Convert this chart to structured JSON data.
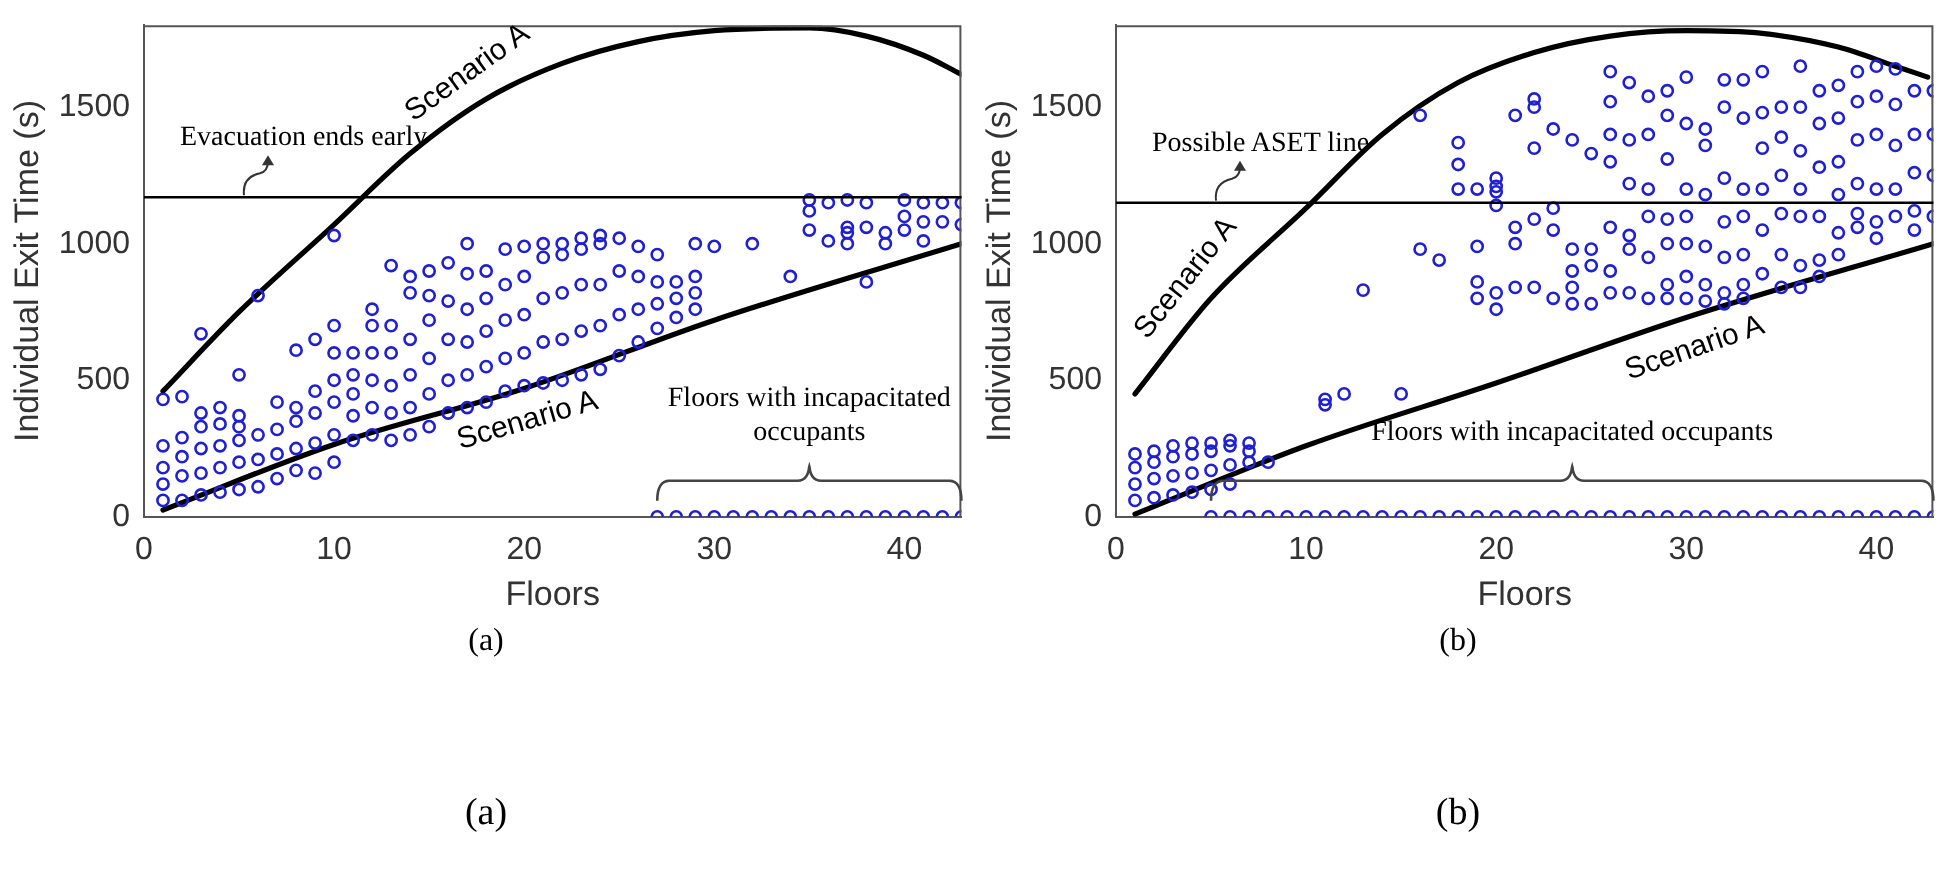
{
  "chart_data": [
    {
      "type": "scatter",
      "xlabel": "Floors",
      "ylabel": "Individual Exit Time (s)",
      "xlim": [
        0,
        43
      ],
      "xticks": [
        0,
        10,
        20,
        30,
        40
      ],
      "ylim": [
        0,
        1800
      ],
      "yticks": [
        0,
        500,
        1000,
        1500
      ],
      "marker": "circle",
      "ref_lines": [
        {
          "axis": "y",
          "value": 1170,
          "label": "Evacuation ends early",
          "color": "#000000"
        }
      ],
      "annotations": [
        "Floors with incapacitated occupants",
        "(a)",
        "(a)"
      ],
      "series": [
        {
          "type": "scatter",
          "color": "#1f1fd6",
          "x": [
            1,
            1,
            1,
            1,
            1,
            2,
            2,
            2,
            2,
            2,
            3,
            3,
            3,
            3,
            3,
            3,
            4,
            4,
            4,
            4,
            4,
            5,
            5,
            5,
            5,
            5,
            5,
            6,
            6,
            6,
            6,
            7,
            7,
            7,
            7,
            8,
            8,
            8,
            8,
            8,
            9,
            9,
            9,
            9,
            9,
            10,
            10,
            10,
            10,
            10,
            10,
            10,
            11,
            11,
            11,
            11,
            11,
            12,
            12,
            12,
            12,
            12,
            12,
            13,
            13,
            13,
            13,
            13,
            13,
            14,
            14,
            14,
            14,
            14,
            14,
            15,
            15,
            15,
            15,
            15,
            15,
            16,
            16,
            16,
            16,
            16,
            17,
            17,
            17,
            17,
            17,
            17,
            18,
            18,
            18,
            18,
            18,
            19,
            19,
            19,
            19,
            19,
            20,
            20,
            20,
            20,
            20,
            21,
            21,
            21,
            21,
            21,
            22,
            22,
            22,
            22,
            22,
            23,
            23,
            23,
            23,
            23,
            24,
            24,
            24,
            24,
            24,
            25,
            25,
            25,
            25,
            26,
            26,
            26,
            26,
            27,
            27,
            27,
            27,
            28,
            28,
            28,
            29,
            29,
            29,
            29,
            30,
            32,
            34,
            35,
            35,
            35,
            36,
            36,
            37,
            37,
            37,
            37,
            38,
            38,
            38,
            39,
            39,
            40,
            40,
            40,
            41,
            41,
            41,
            42,
            42,
            43,
            43,
            27,
            28,
            29,
            30,
            31,
            32,
            33,
            34,
            35,
            36,
            37,
            38,
            39,
            40,
            41,
            42,
            43
          ],
          "values": [
            60,
            120,
            180,
            260,
            430,
            60,
            150,
            220,
            290,
            440,
            80,
            160,
            250,
            330,
            380,
            670,
            90,
            180,
            260,
            340,
            400,
            100,
            200,
            280,
            330,
            370,
            520,
            110,
            210,
            300,
            810,
            140,
            230,
            320,
            420,
            170,
            250,
            350,
            400,
            610,
            160,
            270,
            380,
            460,
            650,
            200,
            300,
            420,
            500,
            600,
            700,
            1030,
            280,
            370,
            450,
            520,
            600,
            300,
            400,
            500,
            600,
            700,
            760,
            280,
            380,
            480,
            600,
            700,
            920,
            300,
            400,
            520,
            650,
            820,
            880,
            330,
            450,
            580,
            720,
            810,
            900,
            380,
            500,
            650,
            790,
            930,
            400,
            520,
            640,
            760,
            890,
            1000,
            420,
            550,
            680,
            800,
            900,
            460,
            580,
            720,
            850,
            980,
            480,
            600,
            740,
            880,
            990,
            490,
            640,
            800,
            950,
            1000,
            500,
            650,
            820,
            960,
            1000,
            520,
            680,
            850,
            980,
            1020,
            540,
            700,
            850,
            1000,
            1030,
            590,
            740,
            900,
            1020,
            640,
            760,
            880,
            990,
            690,
            780,
            860,
            960,
            730,
            800,
            860,
            760,
            820,
            880,
            1000,
            990,
            1000,
            880,
            1050,
            1120,
            1160,
            1010,
            1150,
            1000,
            1040,
            1060,
            1160,
            860,
            1060,
            1150,
            1000,
            1040,
            1050,
            1100,
            1160,
            1010,
            1080,
            1150,
            1080,
            1150,
            1070,
            1150,
            0,
            0,
            0,
            0,
            0,
            0,
            0,
            0,
            0,
            0,
            0,
            0,
            0,
            0,
            0,
            0,
            0
          ]
        },
        {
          "type": "line",
          "name": "Scenario A",
          "marker": "none",
          "color": "#000000",
          "x": [
            1,
            5,
            10,
            14,
            18,
            22,
            26,
            30,
            35,
            38,
            41,
            43
          ],
          "values": [
            460,
            750,
            1070,
            1330,
            1530,
            1660,
            1740,
            1780,
            1790,
            1760,
            1690,
            1620
          ]
        },
        {
          "type": "line",
          "name": "Scenario A",
          "marker": "none",
          "color": "#000000",
          "x": [
            1,
            10,
            20,
            30,
            43
          ],
          "values": [
            25,
            265,
            470,
            720,
            1000
          ]
        }
      ]
    },
    {
      "type": "scatter",
      "xlabel": "Floors",
      "ylabel": "Individual Exit Time (s)",
      "xlim": [
        0,
        43
      ],
      "xticks": [
        0,
        10,
        20,
        30,
        40
      ],
      "ylim": [
        0,
        1800
      ],
      "yticks": [
        0,
        500,
        1000,
        1500
      ],
      "marker": "circle",
      "ref_lines": [
        {
          "axis": "y",
          "value": 1150,
          "label": "Possible ASET line",
          "color": "#000000"
        }
      ],
      "annotations": [
        "Floors with incapacitated occupants",
        "(b)",
        "(b)"
      ],
      "series": [
        {
          "type": "scatter",
          "color": "#1f1fd6",
          "x": [
            1,
            1,
            1,
            1,
            2,
            2,
            2,
            2,
            3,
            3,
            3,
            3,
            4,
            4,
            4,
            4,
            5,
            5,
            5,
            5,
            6,
            6,
            6,
            6,
            7,
            7,
            7,
            8,
            11,
            11,
            12,
            13,
            15,
            16,
            16,
            17,
            18,
            18,
            18,
            19,
            19,
            19,
            19,
            20,
            20,
            20,
            20,
            20,
            20,
            21,
            21,
            21,
            21,
            22,
            22,
            22,
            22,
            22,
            23,
            23,
            23,
            23,
            24,
            24,
            24,
            24,
            24,
            25,
            25,
            25,
            25,
            26,
            26,
            26,
            26,
            26,
            26,
            26,
            27,
            27,
            27,
            27,
            27,
            27,
            28,
            28,
            28,
            28,
            28,
            28,
            29,
            29,
            29,
            29,
            29,
            29,
            29,
            30,
            30,
            30,
            30,
            30,
            30,
            30,
            31,
            31,
            31,
            31,
            31,
            31,
            32,
            32,
            32,
            32,
            32,
            32,
            32,
            33,
            33,
            33,
            33,
            33,
            33,
            33,
            34,
            34,
            34,
            34,
            34,
            34,
            35,
            35,
            35,
            35,
            35,
            35,
            36,
            36,
            36,
            36,
            36,
            36,
            36,
            37,
            37,
            37,
            37,
            37,
            37,
            38,
            38,
            38,
            38,
            38,
            38,
            39,
            39,
            39,
            39,
            39,
            39,
            40,
            40,
            40,
            40,
            40,
            40,
            41,
            41,
            41,
            41,
            41,
            42,
            42,
            42,
            42,
            42,
            43,
            43,
            43,
            43,
            5,
            6,
            7,
            8,
            9,
            10,
            11,
            12,
            13,
            14,
            15,
            16,
            17,
            18,
            19,
            20,
            21,
            22,
            23,
            24,
            25,
            26,
            27,
            28,
            29,
            30,
            31,
            32,
            33,
            34,
            35,
            36,
            37,
            38,
            39,
            40,
            41,
            42,
            43
          ],
          "values": [
            60,
            120,
            180,
            230,
            70,
            140,
            200,
            240,
            80,
            150,
            220,
            260,
            90,
            160,
            230,
            270,
            100,
            170,
            240,
            270,
            120,
            190,
            260,
            280,
            200,
            240,
            270,
            200,
            410,
            430,
            450,
            830,
            450,
            980,
            1470,
            940,
            1200,
            1290,
            1370,
            800,
            860,
            990,
            1200,
            760,
            820,
            1140,
            1190,
            1210,
            1240,
            840,
            1000,
            1060,
            1470,
            840,
            1090,
            1350,
            1500,
            1530,
            800,
            1050,
            1130,
            1420,
            780,
            840,
            900,
            980,
            1380,
            780,
            920,
            980,
            1330,
            820,
            900,
            1060,
            1300,
            1400,
            1520,
            1630,
            820,
            980,
            1030,
            1220,
            1380,
            1590,
            800,
            950,
            1100,
            1200,
            1400,
            1540,
            800,
            850,
            1000,
            1090,
            1310,
            1470,
            1560,
            800,
            880,
            1000,
            1100,
            1200,
            1440,
            1610,
            790,
            850,
            990,
            1180,
            1360,
            1420,
            780,
            820,
            950,
            1080,
            1240,
            1500,
            1600,
            800,
            850,
            960,
            1100,
            1200,
            1460,
            1600,
            890,
            1050,
            1200,
            1350,
            1480,
            1630,
            840,
            960,
            1110,
            1250,
            1390,
            1500,
            840,
            920,
            1100,
            1200,
            1340,
            1500,
            1650,
            880,
            940,
            1100,
            1280,
            1440,
            1560,
            960,
            1040,
            1180,
            1300,
            1460,
            1580,
            1060,
            1110,
            1220,
            1380,
            1520,
            1630,
            1020,
            1080,
            1200,
            1400,
            1540,
            1650,
            1100,
            1200,
            1360,
            1510,
            1640,
            1050,
            1120,
            1260,
            1400,
            1560,
            1100,
            1250,
            1400,
            1560,
            0,
            0,
            0,
            0,
            0,
            0,
            0,
            0,
            0,
            0,
            0,
            0,
            0,
            0,
            0,
            0,
            0,
            0,
            0,
            0,
            0,
            0,
            0,
            0,
            0,
            0,
            0,
            0,
            0,
            0,
            0,
            0,
            0,
            0,
            0,
            0,
            0,
            0,
            0
          ]
        },
        {
          "type": "line",
          "name": "Scenario A",
          "marker": "none",
          "color": "#000000",
          "x": [
            1,
            5,
            10,
            14,
            18,
            22,
            26,
            30,
            34,
            38,
            41,
            42.7
          ],
          "values": [
            450,
            800,
            1130,
            1400,
            1590,
            1700,
            1760,
            1780,
            1770,
            1720,
            1650,
            1610
          ]
        },
        {
          "type": "line",
          "name": "Scenario A",
          "marker": "none",
          "color": "#000000",
          "x": [
            1,
            10,
            20,
            30,
            43
          ],
          "values": [
            10,
            260,
            490,
            730,
            1000
          ]
        }
      ]
    }
  ]
}
